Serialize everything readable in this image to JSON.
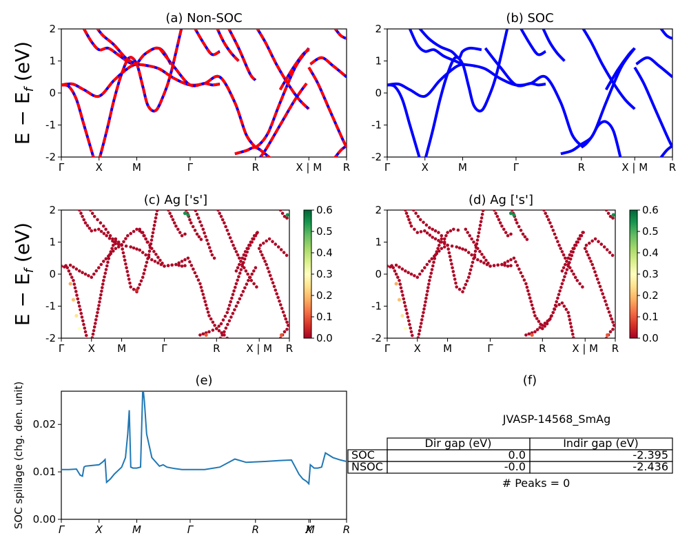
{
  "kpath": {
    "labels": [
      "Γ",
      "X",
      "M",
      "Γ",
      "R",
      "X | M",
      "R"
    ],
    "positions": [
      0,
      0.5,
      1.0,
      1.7071,
      2.5731,
      3.2802,
      3.7802
    ]
  },
  "chart_data": [
    {
      "id": "a",
      "type": "line",
      "title": "(a) Non-SOC",
      "ylabel": "E − E_f (eV)",
      "ylim": [
        -2,
        2
      ],
      "yticks": [
        -2,
        -1,
        0,
        1,
        2
      ],
      "series_colors": [
        "#0000ff",
        "#ff0000"
      ],
      "style": "dashed red over blue",
      "bands": [
        {
          "x": [
            0,
            0.15,
            0.3,
            0.5,
            0.7,
            0.9,
            1.0
          ],
          "y": [
            0.25,
            0.28,
            0.1,
            -0.1,
            0.4,
            0.8,
            0.9
          ]
        },
        {
          "x": [
            0,
            0.1,
            0.2,
            0.3,
            0.4,
            0.5
          ],
          "y": [
            0.25,
            0.2,
            -0.2,
            -1.0,
            -1.8,
            -2.6
          ]
        },
        {
          "x": [
            0.3,
            0.4,
            0.5,
            0.62,
            0.75,
            0.9,
            1.0,
            1.15,
            1.3,
            1.5,
            1.7071,
            1.9,
            2.1,
            2.3,
            2.45,
            2.5731
          ],
          "y": [
            2.0,
            1.6,
            1.35,
            1.4,
            1.2,
            0.95,
            0.9,
            0.85,
            0.75,
            0.45,
            0.25,
            0.3,
            0.5,
            -0.3,
            -1.3,
            -1.7
          ]
        },
        {
          "x": [
            0.5,
            0.6,
            0.7,
            0.8,
            0.9,
            1.0,
            1.08,
            1.15,
            1.25,
            1.35,
            1.45,
            1.6
          ],
          "y": [
            -2.1,
            -1.2,
            -0.2,
            0.6,
            1.1,
            0.9,
            0.2,
            -0.4,
            -0.55,
            -0.1,
            0.6,
            2.1
          ]
        },
        {
          "x": [
            0.45,
            0.55,
            0.7,
            0.85,
            0.95,
            1.0,
            1.1,
            1.25,
            1.35,
            1.45
          ],
          "y": [
            2.1,
            1.8,
            1.5,
            1.1,
            0.95,
            0.92,
            1.2,
            1.4,
            1.3,
            0.9
          ]
        },
        {
          "x": [
            1.3,
            1.5,
            1.7071,
            1.9,
            2.0,
            2.1
          ],
          "y": [
            1.4,
            0.8,
            0.25,
            0.3,
            0.25,
            0.28
          ]
        },
        {
          "x": [
            1.75,
            1.9,
            2.0,
            2.1
          ],
          "y": [
            2.1,
            1.5,
            1.2,
            1.3
          ]
        },
        {
          "x": [
            2.05,
            2.15,
            2.25,
            2.35
          ],
          "y": [
            2.1,
            1.6,
            1.25,
            1.0
          ]
        },
        {
          "x": [
            2.2,
            2.35,
            2.5,
            2.5731
          ],
          "y": [
            2.1,
            1.4,
            0.6,
            0.4
          ]
        },
        {
          "x": [
            2.5731,
            2.65,
            2.75,
            2.9,
            3.1,
            3.2802
          ],
          "y": [
            -1.7,
            -1.55,
            -1.2,
            -0.3,
            0.8,
            1.4
          ]
        },
        {
          "x": [
            2.3,
            2.45,
            2.5731,
            2.7,
            2.85
          ],
          "y": [
            -1.9,
            -1.8,
            -1.7,
            -1.9,
            -2.2
          ]
        },
        {
          "x": [
            2.5731,
            2.7,
            2.85,
            3.0,
            3.15,
            3.2802
          ],
          "y": [
            2.1,
            1.6,
            0.9,
            0.3,
            -0.2,
            -0.5
          ]
        },
        {
          "x": [
            2.5731,
            2.7,
            2.9,
            3.1,
            3.25
          ],
          "y": [
            -2.2,
            -1.8,
            -1.0,
            -0.2,
            0.3
          ]
        },
        {
          "x": [
            2.9,
            3.05,
            3.2,
            3.2802
          ],
          "y": [
            0.1,
            0.7,
            1.2,
            1.35
          ]
        },
        {
          "x": [
            3.2802,
            3.4,
            3.55,
            3.7,
            3.7802
          ],
          "y": [
            0.8,
            0.3,
            -0.5,
            -1.3,
            -1.7
          ]
        },
        {
          "x": [
            3.3,
            3.45,
            3.6,
            3.7802
          ],
          "y": [
            0.9,
            1.1,
            0.85,
            0.5
          ]
        },
        {
          "x": [
            3.6,
            3.7,
            3.7802
          ],
          "y": [
            -2.1,
            -1.8,
            -1.65
          ]
        },
        {
          "x": [
            3.6,
            3.7,
            3.7802
          ],
          "y": [
            2.1,
            1.8,
            1.7
          ]
        }
      ]
    },
    {
      "id": "b",
      "type": "line",
      "title": "(b) SOC",
      "ylim": [
        -2,
        2
      ],
      "yticks": [
        -2,
        -1,
        0,
        1,
        2
      ],
      "series_colors": [
        "#0000ff"
      ],
      "bands": [
        {
          "x": [
            0,
            0.15,
            0.3,
            0.5,
            0.7,
            0.9,
            1.0
          ],
          "y": [
            0.25,
            0.28,
            0.1,
            -0.1,
            0.4,
            0.8,
            0.9
          ]
        },
        {
          "x": [
            0,
            0.1,
            0.2,
            0.3,
            0.4,
            0.5
          ],
          "y": [
            0.25,
            0.2,
            -0.2,
            -1.0,
            -1.8,
            -2.6
          ]
        },
        {
          "x": [
            0.3,
            0.4,
            0.5,
            0.62,
            0.75,
            0.9,
            1.0,
            1.15,
            1.3,
            1.5,
            1.7071,
            1.9,
            2.1,
            2.3,
            2.45,
            2.5731
          ],
          "y": [
            2.0,
            1.5,
            1.3,
            1.35,
            1.15,
            1.0,
            0.9,
            0.85,
            0.75,
            0.45,
            0.25,
            0.3,
            0.5,
            -0.3,
            -1.3,
            -1.65
          ]
        },
        {
          "x": [
            0.5,
            0.6,
            0.7,
            0.8,
            0.9,
            1.0,
            1.08,
            1.15,
            1.25,
            1.35,
            1.45,
            1.6
          ],
          "y": [
            -2.1,
            -1.2,
            -0.2,
            0.6,
            1.1,
            0.9,
            0.2,
            -0.4,
            -0.55,
            -0.1,
            0.6,
            2.1
          ]
        },
        {
          "x": [
            0.4,
            0.55,
            0.7,
            0.85,
            0.95,
            1.0,
            1.1,
            1.25
          ],
          "y": [
            2.1,
            1.7,
            1.45,
            1.3,
            1.1,
            1.3,
            1.4,
            1.35
          ]
        },
        {
          "x": [
            1.3,
            1.5,
            1.7071,
            1.9,
            2.0,
            2.1
          ],
          "y": [
            1.4,
            0.8,
            0.25,
            0.3,
            0.25,
            0.28
          ]
        },
        {
          "x": [
            1.75,
            1.9,
            2.0,
            2.1
          ],
          "y": [
            2.1,
            1.5,
            1.2,
            1.3
          ]
        },
        {
          "x": [
            2.05,
            2.15,
            2.25,
            2.35
          ],
          "y": [
            2.1,
            1.6,
            1.25,
            1.0
          ]
        },
        {
          "x": [
            2.5731,
            2.65,
            2.75,
            2.9,
            3.1,
            3.2802
          ],
          "y": [
            -1.7,
            -1.55,
            -1.2,
            -0.3,
            0.8,
            1.4
          ]
        },
        {
          "x": [
            2.3,
            2.45,
            2.5731,
            2.7,
            2.8,
            2.9,
            3.0,
            3.1
          ],
          "y": [
            -1.9,
            -1.8,
            -1.6,
            -1.4,
            -1.0,
            -0.9,
            -1.2,
            -2.1
          ]
        },
        {
          "x": [
            2.5731,
            2.7,
            2.85,
            3.0,
            3.15,
            3.2802
          ],
          "y": [
            2.1,
            1.6,
            0.9,
            0.3,
            -0.2,
            -0.5
          ]
        },
        {
          "x": [
            2.9,
            3.05,
            3.2,
            3.2802
          ],
          "y": [
            0.1,
            0.7,
            1.2,
            1.4
          ]
        },
        {
          "x": [
            3.2802,
            3.4,
            3.55,
            3.7,
            3.7802
          ],
          "y": [
            0.8,
            0.3,
            -0.5,
            -1.3,
            -1.7
          ]
        },
        {
          "x": [
            3.3,
            3.45,
            3.6,
            3.7802
          ],
          "y": [
            0.9,
            1.1,
            0.85,
            0.5
          ]
        },
        {
          "x": [
            3.6,
            3.7,
            3.7802
          ],
          "y": [
            -2.1,
            -1.8,
            -1.65
          ]
        },
        {
          "x": [
            3.6,
            3.7,
            3.7802
          ],
          "y": [
            2.1,
            1.8,
            1.7
          ]
        }
      ]
    },
    {
      "id": "c",
      "type": "scatter",
      "title": "(c)  Ag ['s']",
      "ylabel": "E − E_f (eV)",
      "ylim": [
        -2,
        2
      ],
      "yticks": [
        -2,
        -1,
        0,
        1,
        2
      ],
      "colorbar": {
        "min": 0.0,
        "max": 0.6,
        "ticks": [
          "0.0",
          "0.1",
          "0.2",
          "0.3",
          "0.4",
          "0.5",
          "0.6"
        ],
        "colormap": "RdYlGn"
      },
      "high_weight_points": [
        {
          "x": 0.15,
          "y": -0.3,
          "w": 0.18
        },
        {
          "x": 0.2,
          "y": -0.8,
          "w": 0.2
        },
        {
          "x": 0.25,
          "y": -1.3,
          "w": 0.25
        },
        {
          "x": 0.3,
          "y": -1.7,
          "w": 0.3
        },
        {
          "x": 2.05,
          "y": 1.9,
          "w": 0.55
        },
        {
          "x": 2.1,
          "y": 1.85,
          "w": 0.55
        },
        {
          "x": 3.75,
          "y": 1.85,
          "w": 0.55
        },
        {
          "x": 2.4,
          "y": -1.9,
          "w": 0.1
        },
        {
          "x": 3.65,
          "y": -1.9,
          "w": 0.1
        },
        {
          "x": 1.25,
          "y": -0.5,
          "w": 0.06
        }
      ]
    },
    {
      "id": "d",
      "type": "scatter",
      "title": "(d) Ag ['s']",
      "ylim": [
        -2,
        2
      ],
      "yticks": [
        -2,
        -1,
        0,
        1,
        2
      ],
      "colorbar": {
        "min": 0.0,
        "max": 0.6,
        "ticks": [
          "0.0",
          "0.1",
          "0.2",
          "0.3",
          "0.4",
          "0.5",
          "0.6"
        ],
        "colormap": "RdYlGn"
      },
      "high_weight_points": [
        {
          "x": 0.15,
          "y": -0.3,
          "w": 0.18
        },
        {
          "x": 0.2,
          "y": -0.8,
          "w": 0.2
        },
        {
          "x": 0.25,
          "y": -1.3,
          "w": 0.25
        },
        {
          "x": 0.3,
          "y": -1.7,
          "w": 0.3
        },
        {
          "x": 2.05,
          "y": 1.9,
          "w": 0.55
        },
        {
          "x": 2.1,
          "y": 1.85,
          "w": 0.55
        },
        {
          "x": 3.75,
          "y": 1.85,
          "w": 0.55
        },
        {
          "x": 2.4,
          "y": -1.9,
          "w": 0.1
        },
        {
          "x": 3.65,
          "y": -1.9,
          "w": 0.1
        }
      ]
    },
    {
      "id": "e",
      "type": "line",
      "title": "(e)",
      "ylabel": "SOC spillage (chg. den. unit)",
      "ylim": [
        0.0,
        0.027
      ],
      "yticks": [
        "0.00",
        "0.01",
        "0.02"
      ],
      "ytick_values": [
        0.0,
        0.01,
        0.02
      ],
      "xlabels": [
        "Γ",
        "X",
        "M",
        "Γ",
        "R",
        "X",
        "M",
        "R"
      ],
      "xlabel_positions": [
        0,
        0.5,
        1.0,
        1.7071,
        2.5731,
        3.2802,
        3.3,
        3.7802
      ],
      "series_colors": [
        "#1f77b4"
      ],
      "x": [
        0,
        0.1,
        0.2,
        0.25,
        0.28,
        0.3,
        0.32,
        0.5,
        0.55,
        0.58,
        0.6,
        0.65,
        0.7,
        0.8,
        0.85,
        0.88,
        0.9,
        0.92,
        0.95,
        1.0,
        1.05,
        1.08,
        1.1,
        1.13,
        1.2,
        1.3,
        1.35,
        1.4,
        1.5,
        1.6,
        1.7071,
        1.9,
        2.1,
        2.3,
        2.45,
        2.5731,
        2.7,
        2.9,
        3.05,
        3.1,
        3.15,
        3.2,
        3.25,
        3.2802,
        3.3,
        3.35,
        3.4,
        3.45,
        3.5,
        3.6,
        3.7,
        3.7802
      ],
      "y": [
        0.0105,
        0.0105,
        0.0106,
        0.0093,
        0.0091,
        0.011,
        0.0112,
        0.0115,
        0.0121,
        0.0126,
        0.0078,
        0.0085,
        0.0095,
        0.011,
        0.013,
        0.018,
        0.023,
        0.011,
        0.0108,
        0.0108,
        0.011,
        0.028,
        0.025,
        0.018,
        0.013,
        0.0112,
        0.0115,
        0.011,
        0.0107,
        0.0105,
        0.0105,
        0.0105,
        0.011,
        0.0127,
        0.012,
        0.0121,
        0.0122,
        0.0124,
        0.0125,
        0.011,
        0.0095,
        0.0085,
        0.008,
        0.0075,
        0.0115,
        0.0108,
        0.0108,
        0.011,
        0.014,
        0.013,
        0.0125,
        0.0122
      ]
    }
  ],
  "info": {
    "title": "(f)",
    "material": "JVASP-14568_SmAg",
    "table": {
      "headers": [
        "Dir gap (eV)",
        "Indir gap (eV)"
      ],
      "rows": [
        {
          "label": "SOC",
          "dir": "0.0",
          "indir": "-2.395"
        },
        {
          "label": "NSOC",
          "dir": "-0.0",
          "indir": "-2.436"
        }
      ]
    },
    "peaks": "# Peaks = 0"
  }
}
